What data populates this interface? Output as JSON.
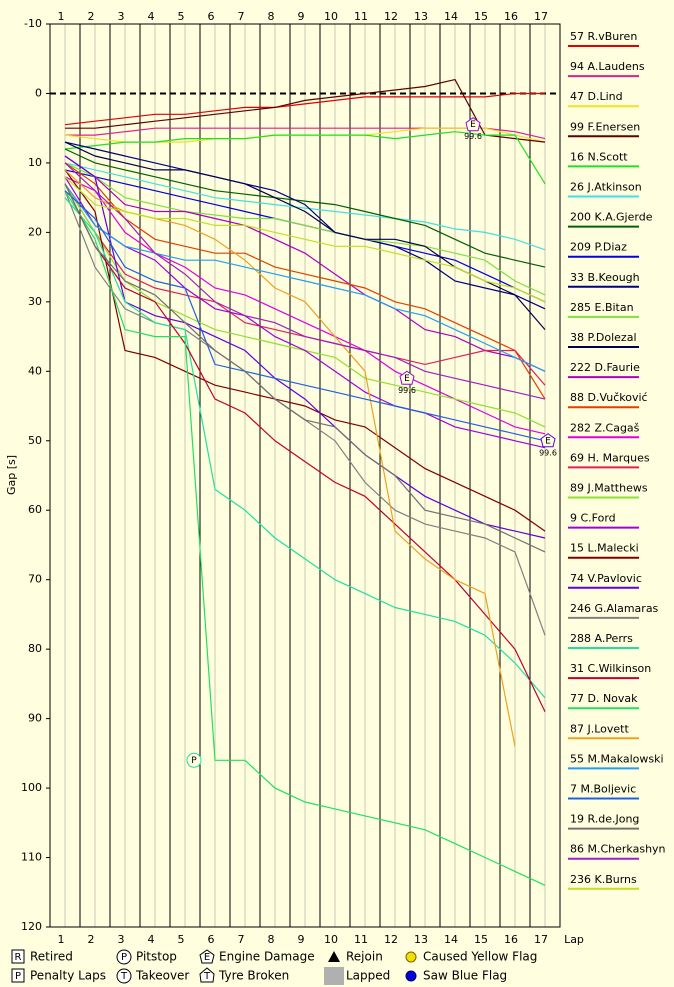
{
  "chart_data": {
    "type": "line",
    "y_label": "Gap [s]",
    "x_label": "Lap",
    "x": [
      1,
      2,
      3,
      4,
      5,
      6,
      7,
      8,
      9,
      10,
      11,
      12,
      13,
      14,
      15,
      16,
      17
    ],
    "xlim": [
      0.5,
      17.5
    ],
    "xticks": [
      1,
      2,
      3,
      4,
      5,
      6,
      7,
      8,
      9,
      10,
      11,
      12,
      13,
      14,
      15,
      16,
      17
    ],
    "ylim": [
      120,
      -10
    ],
    "yticks": [
      -10,
      0,
      10,
      20,
      30,
      40,
      50,
      60,
      70,
      80,
      90,
      100,
      110,
      120
    ],
    "reference_line": 0,
    "series": [
      {
        "name": "57 R.vBuren",
        "color": "#e00000",
        "values": [
          4.5,
          4,
          3.5,
          3,
          3,
          2.5,
          2,
          2,
          1.5,
          1,
          0.5,
          0.5,
          0.5,
          0.5,
          0.5,
          0,
          0
        ]
      },
      {
        "name": "94 A.Laudens",
        "color": "#e0208c",
        "values": [
          6,
          6,
          5.5,
          5,
          5,
          5,
          5,
          5,
          5,
          5,
          5,
          5,
          5,
          5,
          5,
          5.5,
          6.5
        ]
      },
      {
        "name": "47 D.Lind",
        "color": "#f0e020",
        "values": [
          6,
          6.5,
          7,
          7,
          7,
          6.5,
          6.5,
          6,
          6,
          6,
          6,
          5.5,
          5,
          5,
          5,
          6,
          7
        ]
      },
      {
        "name": "99 F.Enersen",
        "color": "#600000",
        "values": [
          5,
          5,
          4.5,
          4,
          3.5,
          3,
          2.5,
          2,
          1,
          0.5,
          0,
          -0.5,
          -1,
          -2,
          6,
          6.5,
          7
        ]
      },
      {
        "name": "16 N.Scott",
        "color": "#20e020",
        "values": [
          8,
          7.5,
          7,
          7,
          6.5,
          6.5,
          6.5,
          6,
          6,
          6,
          6,
          6.5,
          6,
          5.5,
          6,
          6,
          13
        ]
      },
      {
        "name": "26 J.Atkinson",
        "color": "#40e0e0",
        "values": [
          10,
          11,
          12,
          13,
          14,
          15,
          15.5,
          16,
          16.5,
          17,
          17.5,
          18,
          18.5,
          19.5,
          20,
          21,
          22.5
        ]
      },
      {
        "name": "200 K.A.Gjerde",
        "color": "#006000",
        "values": [
          8,
          10,
          11,
          12,
          13,
          14,
          14.5,
          15,
          15.5,
          16,
          17,
          18,
          19,
          21,
          23,
          24,
          25
        ]
      },
      {
        "name": "209 P.Diaz",
        "color": "#0000e0",
        "values": [
          11,
          12,
          13,
          14,
          15,
          16,
          17,
          18,
          19,
          20,
          21,
          22,
          23,
          24,
          26,
          28,
          30
        ]
      },
      {
        "name": "33 B.Keough",
        "color": "#000080",
        "values": [
          7,
          8,
          9,
          10,
          11,
          12,
          13,
          14,
          16,
          20,
          21,
          22,
          24,
          27,
          28,
          29,
          31
        ]
      },
      {
        "name": "285 E.Bitan",
        "color": "#80e040",
        "values": [
          10,
          12,
          15,
          16,
          17,
          17.5,
          18,
          18,
          19,
          20,
          21,
          21.5,
          22,
          23,
          24,
          27,
          29
        ]
      },
      {
        "name": "38 P.Dolezal",
        "color": "#000050",
        "values": [
          7,
          9,
          10,
          11,
          11,
          12,
          13,
          15,
          17,
          20,
          21,
          21,
          22,
          25,
          27,
          29,
          34
        ]
      },
      {
        "name": "222 D.Faurie",
        "color": "#b000c0",
        "values": [
          9,
          12,
          16,
          17,
          17,
          18,
          19,
          21,
          23,
          26,
          29,
          31,
          34,
          35,
          37,
          38,
          40
        ]
      },
      {
        "name": "88 D.Vučković",
        "color": "#e04000",
        "values": [
          10,
          13,
          18,
          21,
          22,
          23,
          23,
          25,
          26,
          27,
          28,
          30,
          31,
          33,
          35,
          37,
          44
        ]
      },
      {
        "name": "282 Z.Cagaš",
        "color": "#e000e0",
        "values": [
          12,
          14,
          20,
          23,
          25,
          28,
          29,
          31,
          33,
          35,
          37,
          40,
          42,
          44,
          46,
          48,
          49
        ]
      },
      {
        "name": "69 H. Marques",
        "color": "#e0205a",
        "values": [
          13,
          20,
          26,
          28,
          29,
          30,
          33,
          34,
          35,
          36,
          37,
          38,
          39,
          38,
          37,
          37,
          42
        ]
      },
      {
        "name": "89 J.Matthews",
        "color": "#90e030",
        "values": [
          13,
          20,
          27,
          30,
          32,
          34,
          35,
          36,
          37,
          38,
          41,
          42,
          43,
          44,
          45,
          46,
          48
        ]
      },
      {
        "name": "9 C.Ford",
        "color": "#a000e0",
        "values": [
          12,
          19,
          22,
          24,
          28,
          31,
          32,
          35,
          37,
          40,
          43,
          45,
          46,
          48,
          49,
          50,
          51
        ]
      },
      {
        "name": "15 L.Malecki",
        "color": "#800000",
        "values": [
          11,
          17,
          37,
          38,
          40,
          42,
          43,
          44,
          45,
          47,
          48,
          51,
          54,
          56,
          58,
          60,
          63
        ]
      },
      {
        "name": "74 V.Pavlovic",
        "color": "#6000e0",
        "values": [
          9,
          12,
          30,
          32,
          33,
          35,
          37,
          41,
          44,
          48,
          52,
          55,
          58,
          60,
          62,
          63,
          64
        ]
      },
      {
        "name": "246 G.Alamaras",
        "color": "#808080",
        "values": [
          14,
          25,
          31,
          33,
          34,
          37,
          40,
          44,
          47,
          50,
          56,
          60,
          62,
          63,
          64,
          66,
          78
        ]
      },
      {
        "name": "288 A.Perrs",
        "color": "#20e0a0",
        "values": [
          15,
          20,
          30,
          33,
          34,
          57,
          60,
          64,
          67,
          70,
          72,
          74,
          75,
          76,
          78,
          82,
          87
        ]
      },
      {
        "name": "31 C.Wilkinson",
        "color": "#c00030",
        "values": [
          13,
          22,
          28,
          30,
          36,
          44,
          46,
          50,
          53,
          56,
          58,
          62,
          66,
          70,
          75,
          80,
          89
        ]
      },
      {
        "name": "77 D. Novak",
        "color": "#20e060",
        "values": [
          14,
          21,
          34,
          35,
          35,
          96,
          96,
          100,
          102,
          103,
          104,
          105,
          106,
          108,
          110,
          112,
          114
        ]
      },
      {
        "name": "87 J.Lovett",
        "color": "#f0a020",
        "values": [
          11,
          15,
          17,
          18,
          19,
          21,
          24,
          28,
          30,
          35,
          40,
          63,
          67,
          70,
          72,
          94,
          null
        ]
      },
      {
        "name": "55 M.Makalowski",
        "color": "#20a0f0",
        "values": [
          13,
          19,
          22,
          23,
          24,
          24,
          25,
          26,
          27,
          28,
          29,
          31,
          32,
          34,
          36,
          38,
          40
        ]
      },
      {
        "name": "7 M.Boljevic",
        "color": "#2060e0",
        "values": [
          14,
          18,
          25,
          27,
          28,
          39,
          40,
          41,
          42,
          43,
          44,
          45,
          46,
          47,
          48,
          49,
          50
        ]
      },
      {
        "name": "19 R.de.Jong",
        "color": "#707070",
        "values": [
          13,
          22,
          27,
          29,
          33,
          37,
          40,
          44,
          47,
          48,
          52,
          55,
          60,
          61,
          62,
          64,
          66
        ]
      },
      {
        "name": "86 M.Cherkashyn",
        "color": "#a020c0",
        "values": [
          10,
          14,
          18,
          23,
          26,
          30,
          32,
          33,
          35,
          36,
          37,
          38,
          40,
          41,
          42,
          43,
          44
        ]
      },
      {
        "name": "236 K.Burns",
        "color": "#c0e020",
        "values": [
          12,
          16,
          17,
          18,
          18,
          19,
          19,
          20,
          21,
          22,
          22,
          23,
          24,
          25,
          27,
          28,
          30
        ]
      }
    ],
    "annotations": [
      {
        "symbol": "E",
        "x": 14.6,
        "y": 4.5,
        "label": "99.6",
        "color": "#a000e0"
      },
      {
        "symbol": "E",
        "x": 12.4,
        "y": 41,
        "label": "99.6",
        "color": "#a000e0"
      },
      {
        "symbol": "E",
        "x": 17.1,
        "y": 50,
        "label": "99.6",
        "color": "#6000e0"
      },
      {
        "symbol": "P",
        "x": 5.3,
        "y": 96,
        "color": "#20e0a0"
      }
    ],
    "key": [
      {
        "symbol": "R",
        "shape": "square",
        "label": "Retired"
      },
      {
        "symbol": "P",
        "shape": "square",
        "label": "Penalty Laps"
      },
      {
        "symbol": "P",
        "shape": "circle",
        "label": "Pitstop"
      },
      {
        "symbol": "T",
        "shape": "circle",
        "label": "Takeover"
      },
      {
        "symbol": "E",
        "shape": "pentagon",
        "label": "Engine Damage"
      },
      {
        "symbol": "T",
        "shape": "house",
        "label": "Tyre Broken"
      },
      {
        "shape": "triangle",
        "label": "Rejoin"
      },
      {
        "shape": "gray-square",
        "label": "Lapped"
      },
      {
        "shape": "yellow-dot",
        "label": "Caused Yellow Flag"
      },
      {
        "shape": "blue-dot",
        "label": "Saw Blue Flag"
      }
    ]
  }
}
